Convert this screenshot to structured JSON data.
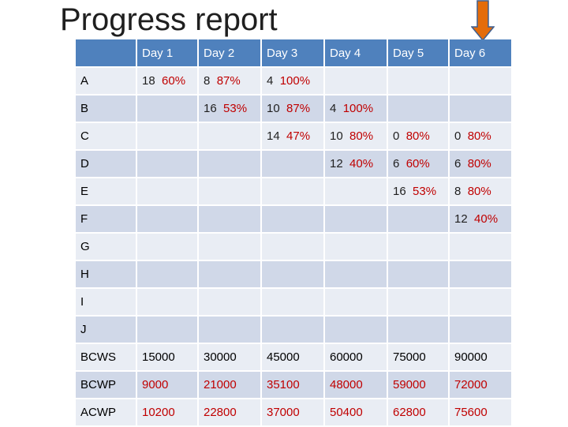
{
  "title": "Progress report",
  "colors": {
    "header": "#4f81bd",
    "row_light": "#e9edf4",
    "row_dark": "#d0d8e8",
    "percent": "#c00000",
    "arrow": "#e46c0a"
  },
  "arrow_icon": "down-arrow-icon",
  "headers": [
    "",
    "Day 1",
    "Day 2",
    "Day 3",
    "Day 4",
    "Day 5",
    "Day 6"
  ],
  "tasks": [
    {
      "label": "A",
      "cells": [
        {
          "n": "18",
          "p": "60%"
        },
        {
          "n": "8",
          "p": "87%"
        },
        {
          "n": "4",
          "p": "100%"
        },
        null,
        null,
        null
      ]
    },
    {
      "label": "B",
      "cells": [
        null,
        {
          "n": "16",
          "p": "53%"
        },
        {
          "n": "10",
          "p": "87%"
        },
        {
          "n": "4",
          "p": "100%"
        },
        null,
        null
      ]
    },
    {
      "label": "C",
      "cells": [
        null,
        null,
        {
          "n": "14",
          "p": "47%"
        },
        {
          "n": "10",
          "p": "80%"
        },
        {
          "n": "0",
          "p": "80%"
        },
        {
          "n": "0",
          "p": "80%"
        }
      ]
    },
    {
      "label": "D",
      "cells": [
        null,
        null,
        null,
        {
          "n": "12",
          "p": "40%"
        },
        {
          "n": "6",
          "p": "60%"
        },
        {
          "n": "6",
          "p": "80%"
        }
      ]
    },
    {
      "label": "E",
      "cells": [
        null,
        null,
        null,
        null,
        {
          "n": "16",
          "p": "53%"
        },
        {
          "n": "8",
          "p": "80%"
        }
      ]
    },
    {
      "label": "F",
      "cells": [
        null,
        null,
        null,
        null,
        null,
        {
          "n": "12",
          "p": "40%"
        }
      ]
    },
    {
      "label": "G",
      "cells": [
        null,
        null,
        null,
        null,
        null,
        null
      ]
    },
    {
      "label": "H",
      "cells": [
        null,
        null,
        null,
        null,
        null,
        null
      ]
    },
    {
      "label": "I",
      "cells": [
        null,
        null,
        null,
        null,
        null,
        null
      ]
    },
    {
      "label": "J",
      "cells": [
        null,
        null,
        null,
        null,
        null,
        null
      ]
    }
  ],
  "metrics": [
    {
      "label": "BCWS",
      "values": [
        "15000",
        "30000",
        "45000",
        "60000",
        "75000",
        "90000"
      ]
    },
    {
      "label": "BCWP",
      "values": [
        "9000",
        "21000",
        "35100",
        "48000",
        "59000",
        "72000"
      ]
    },
    {
      "label": "ACWP",
      "values": [
        "10200",
        "22800",
        "37000",
        "50400",
        "62800",
        "75600"
      ]
    }
  ]
}
